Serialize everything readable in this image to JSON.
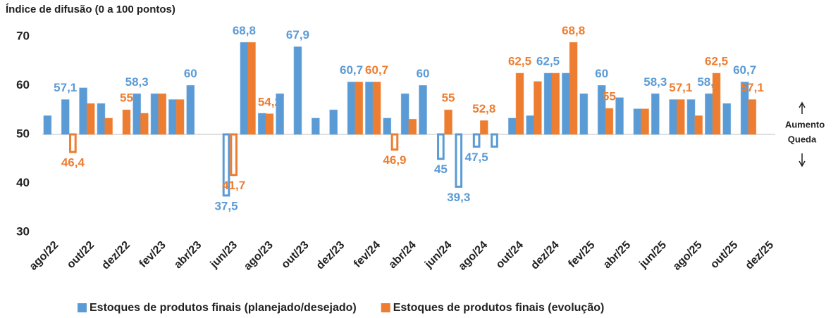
{
  "chart_data": {
    "type": "bar",
    "subtitle": "Índice de difusão (0 a 100 pontos)",
    "categories": [
      "ago/22",
      null,
      "out/22",
      null,
      "dez/22",
      null,
      "fev/23",
      null,
      "abr/23",
      null,
      "jun/23",
      null,
      "ago/23",
      null,
      "out/23",
      null,
      "dez/23",
      null,
      "fev/24",
      null,
      "abr/24",
      null,
      "jun/24",
      null,
      "ago/24",
      null,
      "out/24",
      null,
      "dez/24",
      null,
      "fev/25",
      null,
      "abr/25",
      null,
      "jun/25",
      null,
      "ago/25",
      null,
      "out/25",
      null,
      "dez/25"
    ],
    "baseline": 50,
    "series": [
      {
        "name": "Estoques de produtos finais (planejado/desejado)",
        "color": "#5b9bd5",
        "values": [
          53.8,
          57.1,
          59.5,
          56.3,
          50,
          58.3,
          58.3,
          57.1,
          60,
          50,
          37.5,
          68.8,
          54.3,
          58.3,
          67.9,
          53.3,
          55,
          60.7,
          60.7,
          53.3,
          58.3,
          60,
          45,
          39.3,
          47.5,
          47.5,
          53.3,
          53.8,
          62.5,
          62.5,
          58.3,
          60,
          57.5,
          55.2,
          58.3,
          57.1,
          57.1,
          58.3,
          56.3,
          60.7,
          null
        ],
        "value_labels": [
          null,
          "57,1",
          null,
          null,
          null,
          "58,3",
          null,
          null,
          "60",
          null,
          "37,5",
          "68,8",
          null,
          null,
          "67,9",
          null,
          null,
          "60,7",
          null,
          null,
          null,
          "60",
          "45",
          "39,3",
          "47,5",
          null,
          null,
          null,
          "62,5",
          null,
          null,
          "60",
          null,
          null,
          "58,3",
          null,
          null,
          "58,3",
          null,
          "60,7",
          null
        ]
      },
      {
        "name": "Estoques de produtos finais (evolução)",
        "color": "#ed7d31",
        "values": [
          50,
          46.4,
          56.3,
          53.3,
          55,
          54.3,
          58.3,
          57.1,
          50,
          50,
          41.7,
          68.8,
          54.2,
          50,
          50,
          50,
          50,
          60.7,
          60.7,
          46.9,
          53.1,
          50,
          55,
          50,
          52.8,
          50,
          62.5,
          60.8,
          62.5,
          68.8,
          50,
          55.3,
          50,
          55.2,
          50,
          57.1,
          53.8,
          62.5,
          50,
          57.1,
          null
        ],
        "value_labels": [
          null,
          "46,4",
          null,
          null,
          "55",
          null,
          null,
          null,
          null,
          null,
          "41,7",
          null,
          "54,2",
          null,
          null,
          null,
          null,
          null,
          "60,7",
          "46,9",
          null,
          null,
          "55",
          null,
          "52,8",
          null,
          "62,5",
          null,
          null,
          "68,8",
          null,
          "55",
          null,
          null,
          null,
          "57,1",
          null,
          "62,5",
          null,
          "57,1",
          null
        ]
      }
    ],
    "ylim": [
      30,
      70
    ],
    "yticks": [
      30,
      40,
      50,
      60,
      70
    ],
    "annotations": [
      "Aumento",
      "Queda"
    ],
    "legend": "bottom"
  }
}
